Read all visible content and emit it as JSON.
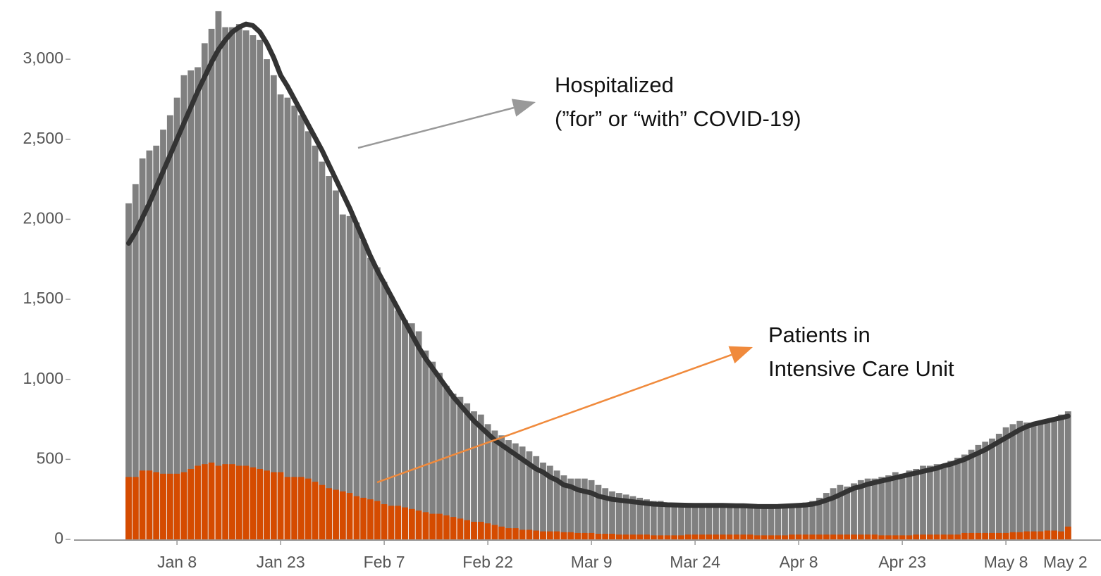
{
  "chart_data": {
    "type": "bar",
    "categories": [
      null,
      null,
      null,
      null,
      null,
      null,
      null,
      "Jan 8",
      null,
      null,
      null,
      null,
      null,
      null,
      null,
      null,
      null,
      null,
      null,
      null,
      null,
      null,
      "Jan 23",
      null,
      null,
      null,
      null,
      null,
      null,
      null,
      null,
      null,
      null,
      null,
      null,
      null,
      null,
      "Feb 7",
      null,
      null,
      null,
      null,
      null,
      null,
      null,
      null,
      null,
      null,
      null,
      null,
      null,
      null,
      "Feb 22",
      null,
      null,
      null,
      null,
      null,
      null,
      null,
      null,
      null,
      null,
      null,
      null,
      null,
      null,
      "Mar 9",
      null,
      null,
      null,
      null,
      null,
      null,
      null,
      null,
      null,
      null,
      null,
      null,
      null,
      null,
      "Mar 24",
      null,
      null,
      null,
      null,
      null,
      null,
      null,
      null,
      null,
      null,
      null,
      null,
      null,
      null,
      "Apr 8",
      null,
      null,
      null,
      null,
      null,
      null,
      null,
      null,
      null,
      null,
      null,
      null,
      null,
      null,
      "Apr 23",
      null,
      null,
      null,
      null,
      null,
      null,
      null,
      null,
      null,
      null,
      null,
      null,
      null,
      null,
      "May 8",
      null,
      null,
      null,
      null,
      null,
      null,
      null,
      null,
      null
    ],
    "xtick_partial": "May 2",
    "series": [
      {
        "type": "bar",
        "color": "#808080",
        "values": [
          2100,
          2220,
          2380,
          2430,
          2460,
          2560,
          2650,
          2760,
          2900,
          2930,
          2950,
          3100,
          3190,
          3300,
          3200,
          3200,
          3220,
          3180,
          3150,
          3120,
          3000,
          2900,
          2780,
          2760,
          2710,
          2650,
          2550,
          2460,
          2360,
          2270,
          2180,
          2030,
          2020,
          1980,
          1870,
          1760,
          1700,
          1610,
          1520,
          1430,
          1370,
          1350,
          1300,
          1180,
          1110,
          1040,
          960,
          910,
          890,
          850,
          800,
          780,
          720,
          680,
          650,
          620,
          600,
          580,
          550,
          520,
          480,
          460,
          430,
          400,
          380,
          380,
          380,
          370,
          340,
          320,
          300,
          290,
          280,
          270,
          260,
          250,
          240,
          240,
          230,
          220,
          220,
          210,
          210,
          200,
          210,
          215,
          220,
          215,
          210,
          215,
          220,
          215,
          210,
          210,
          215,
          215,
          210,
          220,
          230,
          240,
          260,
          290,
          320,
          340,
          330,
          350,
          370,
          380,
          380,
          390,
          400,
          420,
          410,
          430,
          440,
          460,
          460,
          470,
          470,
          490,
          510,
          530,
          560,
          590,
          610,
          630,
          660,
          700,
          720,
          740,
          730,
          720,
          740,
          750,
          760,
          780,
          800
        ]
      },
      {
        "type": "bar",
        "color": "#d54b00",
        "values": [
          390,
          390,
          430,
          430,
          420,
          410,
          410,
          410,
          420,
          440,
          460,
          470,
          480,
          460,
          470,
          470,
          460,
          460,
          450,
          440,
          430,
          420,
          420,
          390,
          390,
          390,
          380,
          360,
          340,
          320,
          310,
          300,
          290,
          270,
          260,
          250,
          240,
          220,
          210,
          210,
          200,
          190,
          180,
          170,
          160,
          160,
          150,
          140,
          130,
          120,
          110,
          110,
          100,
          90,
          80,
          70,
          70,
          60,
          60,
          55,
          50,
          50,
          50,
          45,
          45,
          40,
          40,
          40,
          35,
          35,
          35,
          30,
          30,
          30,
          30,
          30,
          25,
          25,
          25,
          25,
          25,
          30,
          30,
          30,
          30,
          30,
          30,
          30,
          30,
          30,
          30,
          25,
          25,
          25,
          25,
          25,
          30,
          30,
          30,
          30,
          30,
          30,
          30,
          30,
          30,
          30,
          30,
          30,
          30,
          25,
          25,
          25,
          25,
          25,
          30,
          30,
          30,
          30,
          30,
          30,
          30,
          40,
          40,
          40,
          40,
          40,
          40,
          40,
          45,
          45,
          50,
          50,
          50,
          55,
          55,
          50,
          80
        ]
      },
      {
        "type": "line",
        "color": "#333333",
        "values": [
          1850,
          1920,
          2010,
          2100,
          2200,
          2300,
          2400,
          2500,
          2600,
          2700,
          2800,
          2890,
          2980,
          3060,
          3120,
          3170,
          3200,
          3220,
          3210,
          3170,
          3100,
          3010,
          2900,
          2830,
          2750,
          2670,
          2590,
          2510,
          2430,
          2340,
          2250,
          2160,
          2070,
          1970,
          1870,
          1770,
          1680,
          1600,
          1520,
          1440,
          1360,
          1280,
          1200,
          1130,
          1070,
          1010,
          950,
          890,
          840,
          790,
          740,
          700,
          660,
          620,
          590,
          560,
          530,
          500,
          470,
          440,
          420,
          390,
          370,
          340,
          330,
          310,
          300,
          290,
          270,
          260,
          250,
          245,
          240,
          235,
          230,
          225,
          220,
          218,
          216,
          215,
          214,
          213,
          212,
          212,
          212,
          212,
          212,
          211,
          210,
          210,
          208,
          206,
          205,
          205,
          206,
          208,
          210,
          212,
          215,
          220,
          230,
          245,
          260,
          280,
          300,
          320,
          330,
          345,
          355,
          365,
          375,
          385,
          395,
          405,
          415,
          425,
          435,
          445,
          460,
          470,
          485,
          500,
          520,
          540,
          560,
          585,
          610,
          635,
          660,
          685,
          705,
          720,
          730,
          740,
          750,
          760,
          770
        ]
      }
    ],
    "ylim": [
      0,
      3370
    ],
    "yticks": [
      0,
      500,
      {
        "value": 1000,
        "label": "1,000"
      },
      {
        "value": 1500,
        "label": "1,500"
      },
      {
        "value": 2000,
        "label": "2,000"
      },
      {
        "value": 2500,
        "label": "2,500"
      },
      {
        "value": 3000,
        "label": "3,000"
      }
    ],
    "annotations": [
      {
        "lines": [
          "Hospitalized",
          "(”for” or “with” COVID-19)"
        ],
        "color": "#999999"
      },
      {
        "lines": [
          "Patients in",
          "Intensive Care Unit"
        ],
        "color": "#f08a3c"
      }
    ]
  }
}
